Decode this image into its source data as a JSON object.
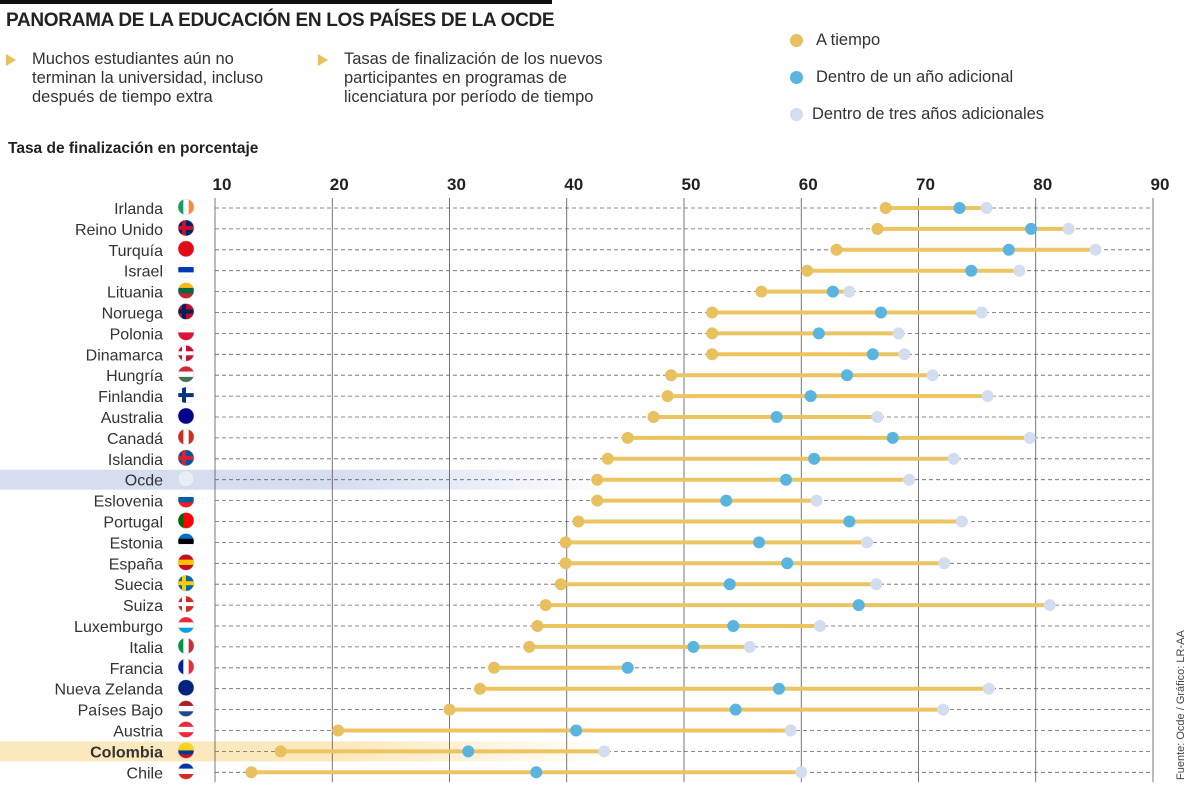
{
  "header": {
    "title": "PANORAMA DE LA EDUCACIÓN EN LOS PAÍSES DE LA OCDE",
    "bullet1": "Muchos estudiantes aún no terminan la universidad, incluso después de tiempo extra",
    "bullet2": "Tasas de finalización de los nuevos participantes en programas de licenciatura por período de tiempo"
  },
  "source": "Fuente: Ocde / Gráfico: LR-AA",
  "colors": {
    "on_time": "#e8c060",
    "one_year": "#5ab4e0",
    "three_years": "#d3ddf0",
    "bar": "#ecc462",
    "highlight_ocde": "#d5def1",
    "highlight_colombia": "#fbe8bd"
  },
  "chart_data": {
    "type": "dumbbell",
    "title": "Tasa de finalización en porcentaje",
    "xlabel": "",
    "ylabel": "",
    "xlim": [
      10,
      90
    ],
    "xticks": [
      10,
      20,
      30,
      40,
      50,
      60,
      70,
      80,
      90
    ],
    "legend_position": "top-right",
    "series": [
      {
        "name": "A tiempo",
        "key": "on_time"
      },
      {
        "name": "Dentro de un año adicional",
        "key": "one_year"
      },
      {
        "name": "Dentro de tres años adicionales",
        "key": "three_years"
      }
    ],
    "rows": [
      {
        "country": "Irlanda",
        "on_time": 67.2,
        "one_year": 73.5,
        "three_years": 75.8,
        "flag": [
          "#169b62",
          "#ffffff",
          "#ff883e"
        ],
        "dir": "v"
      },
      {
        "country": "Reino Unido",
        "on_time": 66.5,
        "one_year": 79.6,
        "three_years": 82.8,
        "flag": [
          "#012169",
          "#c8102e",
          "#012169"
        ],
        "dir": "x"
      },
      {
        "country": "Turquía",
        "on_time": 63.0,
        "one_year": 77.7,
        "three_years": 85.1,
        "flag": [
          "#e30a17"
        ],
        "dir": "s"
      },
      {
        "country": "Israel",
        "on_time": 60.5,
        "one_year": 74.5,
        "three_years": 78.6,
        "flag": [
          "#ffffff",
          "#0038b8",
          "#ffffff"
        ],
        "dir": "h"
      },
      {
        "country": "Lituania",
        "on_time": 56.6,
        "one_year": 62.7,
        "three_years": 64.1,
        "flag": [
          "#fdb913",
          "#006a44",
          "#c1272d"
        ],
        "dir": "h"
      },
      {
        "country": "Noruega",
        "on_time": 52.4,
        "one_year": 66.8,
        "three_years": 75.4,
        "flag": [
          "#ba0c2f",
          "#00205b",
          "#ba0c2f"
        ],
        "dir": "x"
      },
      {
        "country": "Polonia",
        "on_time": 52.4,
        "one_year": 61.5,
        "three_years": 68.3,
        "flag": [
          "#ffffff",
          "#dc143c"
        ],
        "dir": "h"
      },
      {
        "country": "Dinamarca",
        "on_time": 52.4,
        "one_year": 66.1,
        "three_years": 68.8,
        "flag": [
          "#c8102e",
          "#ffffff",
          "#c8102e"
        ],
        "dir": "x"
      },
      {
        "country": "Hungría",
        "on_time": 48.9,
        "one_year": 63.9,
        "three_years": 71.2,
        "flag": [
          "#ce2939",
          "#ffffff",
          "#477050"
        ],
        "dir": "h"
      },
      {
        "country": "Finlandia",
        "on_time": 48.6,
        "one_year": 60.8,
        "three_years": 75.9,
        "flag": [
          "#ffffff",
          "#003580",
          "#ffffff"
        ],
        "dir": "x"
      },
      {
        "country": "Australia",
        "on_time": 47.4,
        "one_year": 57.9,
        "three_years": 66.5,
        "flag": [
          "#00008b"
        ],
        "dir": "s"
      },
      {
        "country": "Canadá",
        "on_time": 45.2,
        "one_year": 67.8,
        "three_years": 79.5,
        "flag": [
          "#d52b1e",
          "#ffffff",
          "#d52b1e"
        ],
        "dir": "v"
      },
      {
        "country": "Islandia",
        "on_time": 43.5,
        "one_year": 61.1,
        "three_years": 73.0,
        "flag": [
          "#02529c",
          "#dc1e35",
          "#02529c"
        ],
        "dir": "x"
      },
      {
        "country": "Ocde",
        "on_time": 42.6,
        "one_year": 58.7,
        "three_years": 69.2,
        "flag": [
          "#e8eef5"
        ],
        "dir": "s",
        "highlight": "ocde"
      },
      {
        "country": "Eslovenia",
        "on_time": 42.6,
        "one_year": 53.6,
        "three_years": 61.3,
        "flag": [
          "#ffffff",
          "#005da4",
          "#ed1c24"
        ],
        "dir": "h"
      },
      {
        "country": "Portugal",
        "on_time": 41.0,
        "one_year": 64.1,
        "three_years": 73.7,
        "flag": [
          "#006600",
          "#ff0000",
          "#ff0000"
        ],
        "dir": "v"
      },
      {
        "country": "Estonia",
        "on_time": 39.9,
        "one_year": 56.4,
        "three_years": 65.6,
        "flag": [
          "#0072ce",
          "#000000",
          "#ffffff"
        ],
        "dir": "h"
      },
      {
        "country": "España",
        "on_time": 39.9,
        "one_year": 58.8,
        "three_years": 72.2,
        "flag": [
          "#c60b1e",
          "#ffc400",
          "#c60b1e"
        ],
        "dir": "h"
      },
      {
        "country": "Suecia",
        "on_time": 39.5,
        "one_year": 53.9,
        "three_years": 66.4,
        "flag": [
          "#006aa7",
          "#fecc00",
          "#006aa7"
        ],
        "dir": "x"
      },
      {
        "country": "Suiza",
        "on_time": 38.2,
        "one_year": 64.9,
        "three_years": 81.2,
        "flag": [
          "#d52b1e",
          "#ffffff",
          "#d52b1e"
        ],
        "dir": "x"
      },
      {
        "country": "Luxemburgo",
        "on_time": 37.5,
        "one_year": 54.2,
        "three_years": 61.6,
        "flag": [
          "#ed2939",
          "#ffffff",
          "#00a1de"
        ],
        "dir": "h"
      },
      {
        "country": "Italia",
        "on_time": 36.8,
        "one_year": 50.8,
        "three_years": 55.6,
        "flag": [
          "#009246",
          "#ffffff",
          "#ce2b37"
        ],
        "dir": "v"
      },
      {
        "country": "Francia",
        "on_time": 33.8,
        "one_year": 45.2,
        "three_years": 45.2,
        "flag": [
          "#002395",
          "#ffffff",
          "#ed2939"
        ],
        "dir": "v"
      },
      {
        "country": "Nueva Zelanda",
        "on_time": 32.6,
        "one_year": 58.1,
        "three_years": 76.0,
        "flag": [
          "#00247d"
        ],
        "dir": "s"
      },
      {
        "country": "Países Bajo",
        "on_time": 30.0,
        "one_year": 54.4,
        "three_years": 72.1,
        "flag": [
          "#ae1c28",
          "#ffffff",
          "#21468b"
        ],
        "dir": "h"
      },
      {
        "country": "Austria",
        "on_time": 20.5,
        "one_year": 40.8,
        "three_years": 59.1,
        "flag": [
          "#ed2939",
          "#ffffff",
          "#ed2939"
        ],
        "dir": "h"
      },
      {
        "country": "Colombia",
        "on_time": 15.6,
        "one_year": 31.6,
        "three_years": 43.2,
        "flag": [
          "#fcd116",
          "#fcd116",
          "#003893",
          "#ce1126"
        ],
        "dir": "h",
        "highlight": "colombia"
      },
      {
        "country": "Chile",
        "on_time": 13.1,
        "one_year": 37.4,
        "three_years": 60.0,
        "flag": [
          "#0039a6",
          "#ffffff",
          "#d52b1e"
        ],
        "dir": "h"
      }
    ]
  }
}
